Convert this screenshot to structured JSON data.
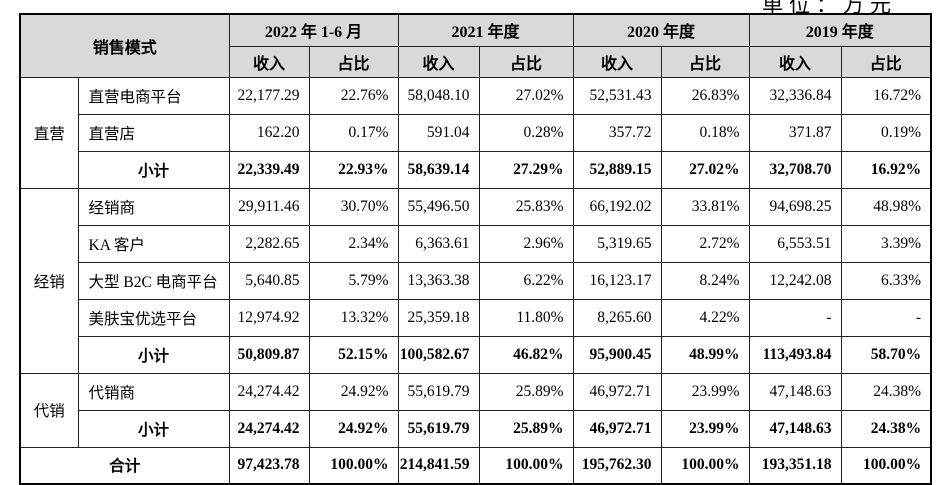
{
  "unit_label": "单位：万元",
  "table": {
    "header": {
      "mode_label": "销售模式",
      "periods": [
        "2022 年 1-6 月",
        "2021 年度",
        "2020 年度",
        "2019 年度"
      ],
      "sub_headers": [
        "收入",
        "占比"
      ]
    },
    "groups": [
      {
        "name": "直营",
        "rows": [
          {
            "label": "直营电商平台",
            "values": [
              "22,177.29",
              "22.76%",
              "58,048.10",
              "27.02%",
              "52,531.43",
              "26.83%",
              "32,336.84",
              "16.72%"
            ]
          },
          {
            "label": "直营店",
            "values": [
              "162.20",
              "0.17%",
              "591.04",
              "0.28%",
              "357.72",
              "0.18%",
              "371.87",
              "0.19%"
            ]
          }
        ],
        "subtotal": {
          "label": "小计",
          "values": [
            "22,339.49",
            "22.93%",
            "58,639.14",
            "27.29%",
            "52,889.15",
            "27.02%",
            "32,708.70",
            "16.92%"
          ]
        }
      },
      {
        "name": "经销",
        "rows": [
          {
            "label": "经销商",
            "values": [
              "29,911.46",
              "30.70%",
              "55,496.50",
              "25.83%",
              "66,192.02",
              "33.81%",
              "94,698.25",
              "48.98%"
            ]
          },
          {
            "label": "KA 客户",
            "values": [
              "2,282.65",
              "2.34%",
              "6,363.61",
              "2.96%",
              "5,319.65",
              "2.72%",
              "6,553.51",
              "3.39%"
            ]
          },
          {
            "label": "大型 B2C 电商平台",
            "values": [
              "5,640.85",
              "5.79%",
              "13,363.38",
              "6.22%",
              "16,123.17",
              "8.24%",
              "12,242.08",
              "6.33%"
            ]
          },
          {
            "label": "美肤宝优选平台",
            "values": [
              "12,974.92",
              "13.32%",
              "25,359.18",
              "11.80%",
              "8,265.60",
              "4.22%",
              "-",
              "-"
            ]
          }
        ],
        "subtotal": {
          "label": "小计",
          "values": [
            "50,809.87",
            "52.15%",
            "100,582.67",
            "46.82%",
            "95,900.45",
            "48.99%",
            "113,493.84",
            "58.70%"
          ]
        }
      },
      {
        "name": "代销",
        "rows": [
          {
            "label": "代销商",
            "values": [
              "24,274.42",
              "24.92%",
              "55,619.79",
              "25.89%",
              "46,972.71",
              "23.99%",
              "47,148.63",
              "24.38%"
            ]
          }
        ],
        "subtotal": {
          "label": "小计",
          "values": [
            "24,274.42",
            "24.92%",
            "55,619.79",
            "25.89%",
            "46,972.71",
            "23.99%",
            "47,148.63",
            "24.38%"
          ]
        }
      }
    ],
    "total": {
      "label": "合计",
      "values": [
        "97,423.78",
        "100.00%",
        "214,841.59",
        "100.00%",
        "195,762.30",
        "100.00%",
        "193,351.18",
        "100.00%"
      ]
    }
  },
  "colors": {
    "header_bg": "#d9d9d9",
    "border": "#000000",
    "text": "#000000",
    "page_bg": "#ffffff"
  }
}
